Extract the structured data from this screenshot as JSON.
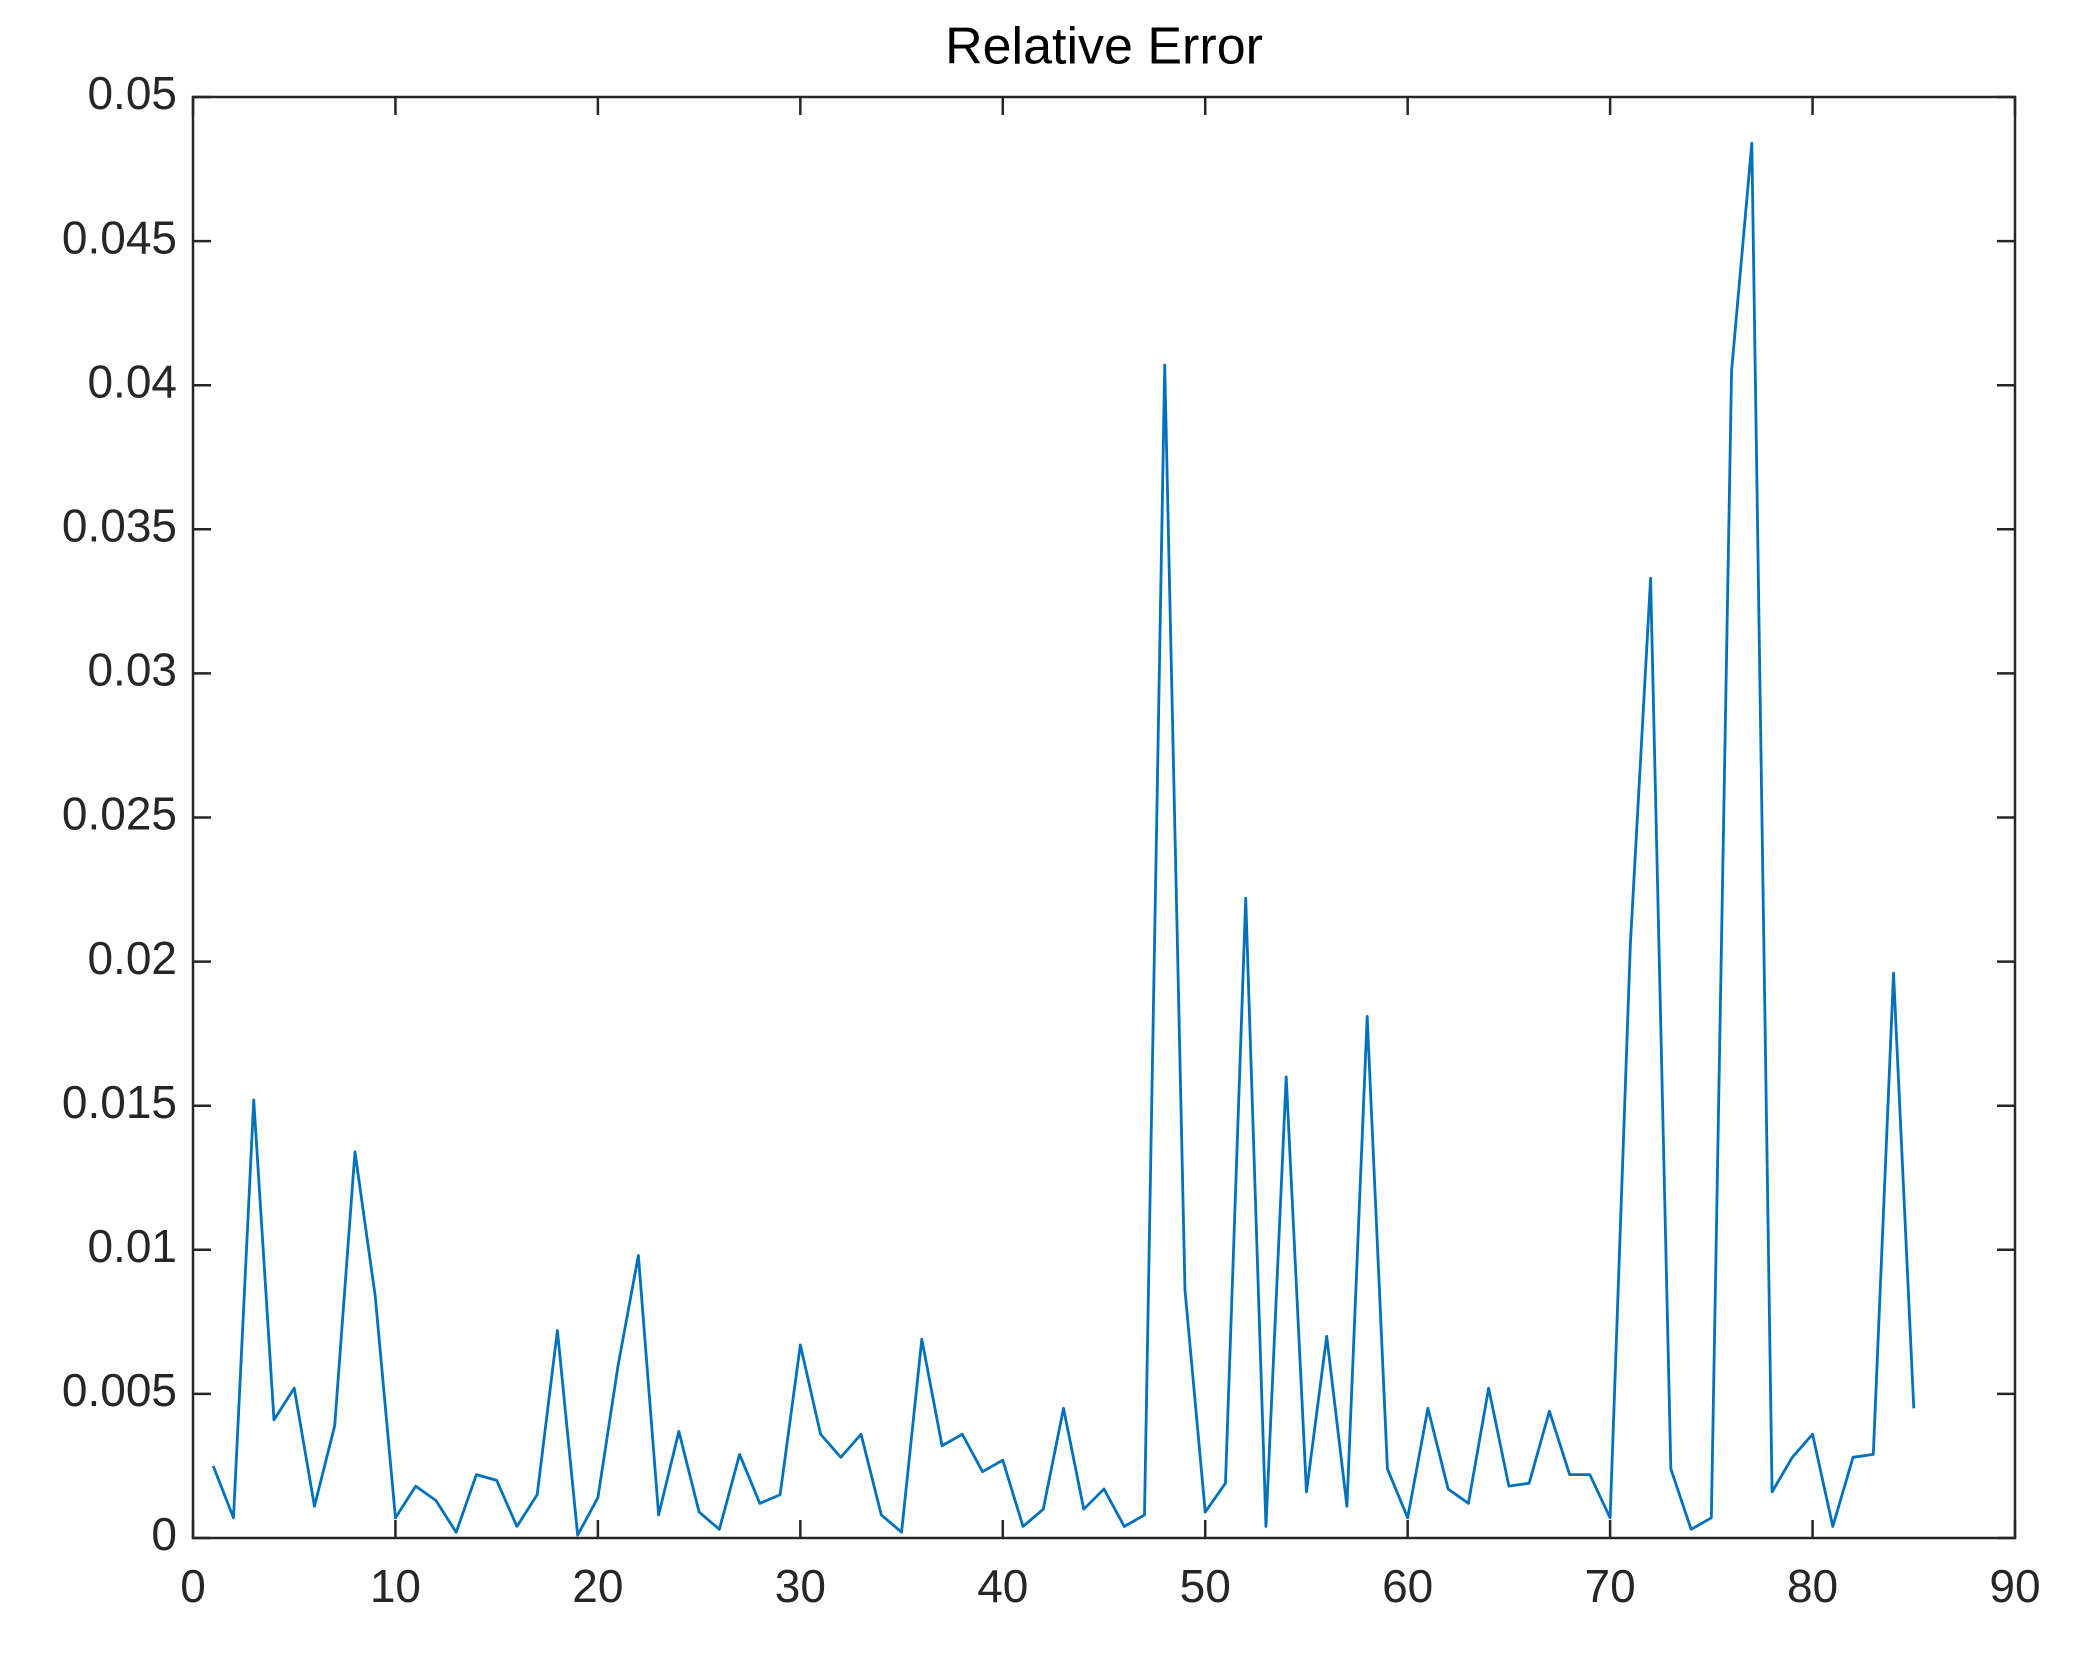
{
  "chart_data": {
    "type": "line",
    "title": "Relative Error",
    "x": [
      1,
      2,
      3,
      4,
      5,
      6,
      7,
      8,
      9,
      10,
      11,
      12,
      13,
      14,
      15,
      16,
      17,
      18,
      19,
      20,
      21,
      22,
      23,
      24,
      25,
      26,
      27,
      28,
      29,
      30,
      31,
      32,
      33,
      34,
      35,
      36,
      37,
      38,
      39,
      40,
      41,
      42,
      43,
      44,
      45,
      46,
      47,
      48,
      49,
      50,
      51,
      52,
      53,
      54,
      55,
      56,
      57,
      58,
      59,
      60,
      61,
      62,
      63,
      64,
      65,
      66,
      67,
      68,
      69,
      70,
      71,
      72,
      73,
      74,
      75,
      76,
      77,
      78,
      79,
      80,
      81,
      82,
      83,
      84,
      85
    ],
    "series": [
      {
        "color": "#0072bd",
        "values": [
          0.0025,
          0.0007,
          0.0152,
          0.0041,
          0.0052,
          0.0011,
          0.0039,
          0.0134,
          0.0084,
          0.0007,
          0.0018,
          0.0013,
          0.0002,
          0.0022,
          0.002,
          0.0004,
          0.0015,
          0.0072,
          0.0001,
          0.0014,
          0.006,
          0.0098,
          0.0008,
          0.0037,
          0.0009,
          0.0003,
          0.0029,
          0.0012,
          0.0015,
          0.0067,
          0.0036,
          0.0028,
          0.0036,
          0.0008,
          0.0002,
          0.0069,
          0.0032,
          0.0036,
          0.0023,
          0.0027,
          0.0004,
          0.001,
          0.0045,
          0.001,
          0.0017,
          0.0004,
          0.0008,
          0.0407,
          0.0086,
          0.0009,
          0.0019,
          0.0222,
          0.0004,
          0.016,
          0.0016,
          0.007,
          0.0011,
          0.0181,
          0.0024,
          0.0007,
          0.0045,
          0.0017,
          0.0012,
          0.0052,
          0.0018,
          0.0019,
          0.0044,
          0.0022,
          0.0022,
          0.0007,
          0.0206,
          0.0333,
          0.0024,
          0.0003,
          0.0007,
          0.0405,
          0.0484,
          0.0016,
          0.0028,
          0.0036,
          0.0004,
          0.0028,
          0.0029,
          0.0196,
          0.0045
        ]
      }
    ],
    "xlim": [
      0,
      90
    ],
    "xticks": [
      0,
      10,
      20,
      30,
      40,
      50,
      60,
      70,
      80,
      90
    ],
    "ylim": [
      0,
      0.05
    ],
    "yticks": [
      0,
      0.005,
      0.01,
      0.015,
      0.02,
      0.025,
      0.03,
      0.035,
      0.04,
      0.045,
      0.05
    ]
  }
}
